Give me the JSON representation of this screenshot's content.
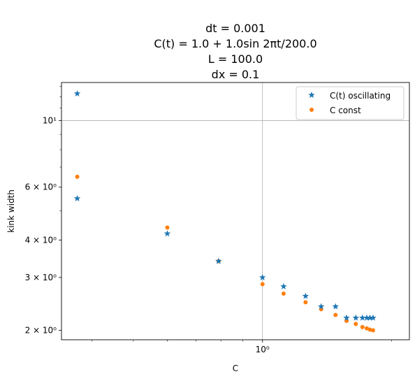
{
  "chart_data": {
    "type": "scatter",
    "title_lines": [
      "dt = 0.001",
      "C(t) = 1.0 + 1.0sin 2πt/200.0",
      "L = 100.0",
      "dx = 0.1"
    ],
    "xlabel": "C",
    "ylabel": "kink width",
    "xscale": "log",
    "yscale": "log",
    "xlim": [
      0.34,
      2.2
    ],
    "ylim": [
      1.86,
      13.4
    ],
    "grid": "major",
    "legend_position": "top-right",
    "x_major_ticks": [
      {
        "value": 1,
        "label": "10⁰"
      }
    ],
    "y_major_ticks": [
      {
        "value": 2,
        "label": "2 × 10⁰"
      },
      {
        "value": 3,
        "label": "3 × 10⁰"
      },
      {
        "value": 4,
        "label": "4 × 10⁰"
      },
      {
        "value": 6,
        "label": "6 × 10⁰"
      },
      {
        "value": 10,
        "label": "10¹"
      }
    ],
    "series": [
      {
        "name": "C(t) oscillating",
        "marker": "star",
        "color": "#1f77b4",
        "x": [
          0.37,
          0.37,
          0.6,
          0.79,
          1.0,
          1.12,
          1.26,
          1.37,
          1.48,
          1.57,
          1.65,
          1.71,
          1.75,
          1.78,
          1.81
        ],
        "y": [
          12.3,
          5.5,
          4.2,
          3.4,
          3.0,
          2.8,
          2.6,
          2.4,
          2.4,
          2.2,
          2.2,
          2.2,
          2.2,
          2.2,
          2.2
        ]
      },
      {
        "name": "C const",
        "marker": "circle",
        "color": "#ff7f0e",
        "x": [
          0.37,
          0.6,
          0.79,
          1.0,
          1.12,
          1.26,
          1.37,
          1.48,
          1.57,
          1.65,
          1.71,
          1.75,
          1.78,
          1.81
        ],
        "y": [
          6.5,
          4.4,
          3.4,
          2.85,
          2.65,
          2.48,
          2.35,
          2.25,
          2.15,
          2.1,
          2.05,
          2.03,
          2.01,
          2.0
        ]
      }
    ]
  }
}
